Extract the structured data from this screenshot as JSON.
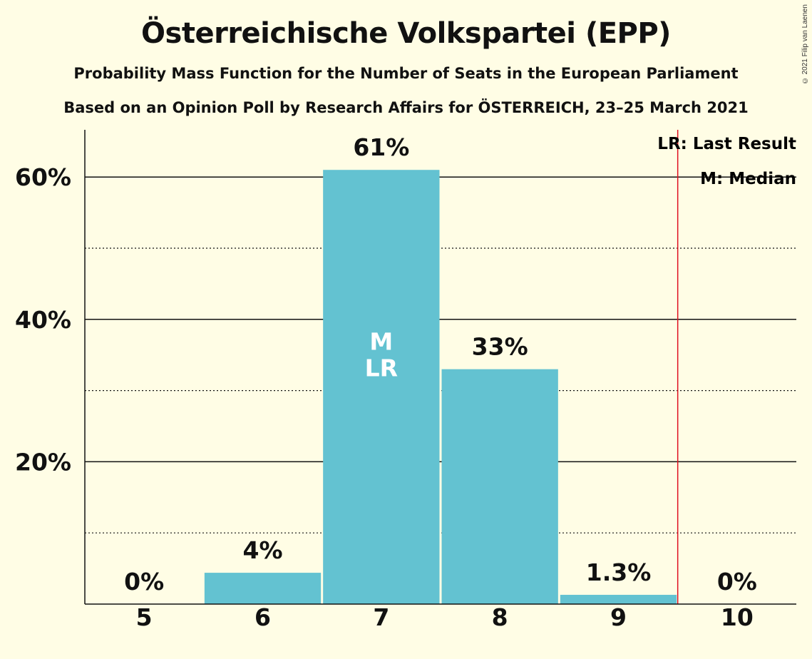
{
  "title": "Österreichische Volkspartei (EPP)",
  "subtitle_1": "Probability Mass Function for the Number of Seats in the European Parliament",
  "subtitle_2": "Based on an Opinion Poll by Research Affairs for ÖSTERREICH, 23–25 March 2021",
  "copyright": "© 2021 Filip van Laenen",
  "legend": {
    "last_result": "LR: Last Result",
    "median": "M: Median"
  },
  "colors": {
    "background": "#fffde5",
    "bar": "#63c2d1",
    "last_result_line": "#e01020",
    "text": "#111111"
  },
  "chart_data": {
    "type": "bar",
    "title": "Österreichische Volkspartei (EPP)",
    "categories": [
      "5",
      "6",
      "7",
      "8",
      "9",
      "10"
    ],
    "values": [
      0,
      4.4,
      61,
      33,
      1.3,
      0
    ],
    "value_labels": [
      "0%",
      "4%",
      "61%",
      "33%",
      "1.3%",
      "0%"
    ],
    "ylim": [
      0,
      65
    ],
    "y_ticks": [
      20,
      40,
      60
    ],
    "y_tick_labels": [
      "20%",
      "40%",
      "60%"
    ],
    "y_minor_ticks": [
      10,
      30,
      50
    ],
    "median_category": "7",
    "last_result_category": "7",
    "majority_line_after_category": "9",
    "in_bar_labels": [
      "M",
      "LR"
    ],
    "grid": true,
    "legend_position": "top-right"
  }
}
